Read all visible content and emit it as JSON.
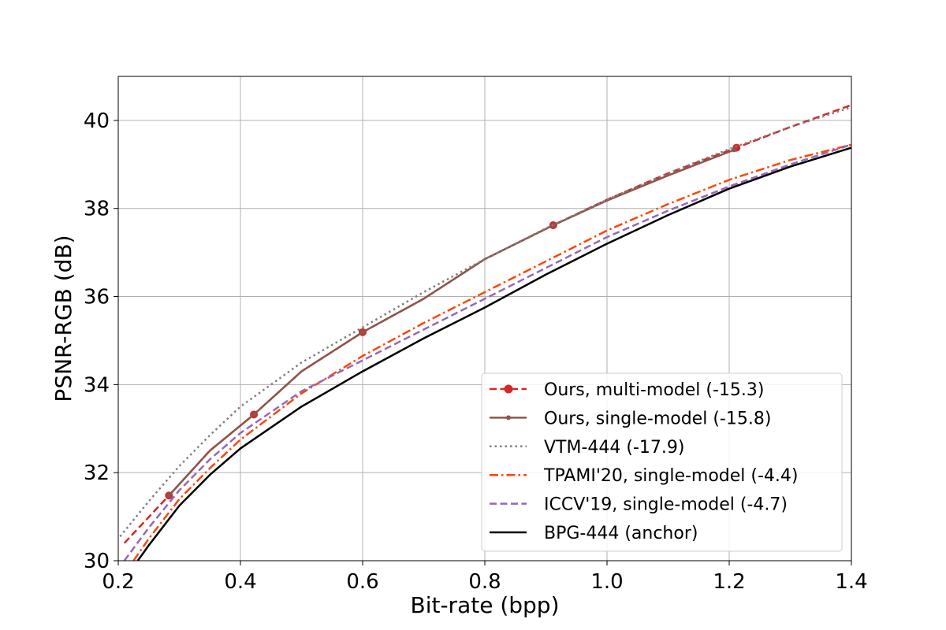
{
  "chart_data": {
    "type": "line",
    "title": "",
    "xlabel": "Bit-rate (bpp)",
    "ylabel": "PSNR-RGB (dB)",
    "xlim": [
      0.2,
      1.4
    ],
    "ylim": [
      30,
      41
    ],
    "x_ticks": [
      0.2,
      0.4,
      0.6,
      0.8,
      1.0,
      1.2,
      1.4
    ],
    "x_tick_labels": [
      "0.2",
      "0.4",
      "0.6",
      "0.8",
      "1.0",
      "1.2",
      "1.4"
    ],
    "y_ticks": [
      30,
      32,
      34,
      36,
      38,
      40
    ],
    "y_tick_labels": [
      "30",
      "32",
      "34",
      "36",
      "38",
      "40"
    ],
    "grid": true,
    "legend_position": "lower-right",
    "series": [
      {
        "name": "Ours, multi-model (-15.3)",
        "color": "#d62728",
        "style": "dashed",
        "marker": "circle-large",
        "x": [
          0.21,
          0.283,
          0.35,
          0.422,
          0.5,
          0.6,
          0.7,
          0.8,
          0.912,
          1.0,
          1.1,
          1.212,
          1.3,
          1.4
        ],
        "y": [
          30.4,
          31.48,
          32.5,
          33.32,
          34.3,
          35.19,
          35.95,
          36.85,
          37.62,
          38.2,
          38.8,
          39.38,
          39.85,
          40.35
        ],
        "marker_indices": [
          1,
          3,
          5,
          8,
          11
        ]
      },
      {
        "name": "Ours, single-model (-15.8)",
        "color": "#8c564b",
        "style": "solid",
        "marker": "circle-small",
        "x": [
          0.283,
          0.35,
          0.422,
          0.5,
          0.6,
          0.7,
          0.8,
          0.912,
          1.0,
          1.1,
          1.208
        ],
        "y": [
          31.48,
          32.5,
          33.32,
          34.3,
          35.19,
          35.95,
          36.85,
          37.62,
          38.18,
          38.75,
          39.33
        ],
        "marker_indices": [
          0,
          2,
          4,
          7,
          10
        ]
      },
      {
        "name": "VTM-444 (-17.9)",
        "color": "#7f7f7f",
        "style": "dotted",
        "marker": "none",
        "x": [
          0.203,
          0.25,
          0.3,
          0.35,
          0.4,
          0.5,
          0.6,
          0.7,
          0.8,
          0.9,
          1.0,
          1.1,
          1.2,
          1.3,
          1.4
        ],
        "y": [
          30.55,
          31.35,
          32.15,
          32.85,
          33.5,
          34.5,
          35.3,
          36.1,
          36.85,
          37.55,
          38.2,
          38.8,
          39.35,
          39.85,
          40.3
        ],
        "marker_indices": []
      },
      {
        "name": "TPAMI'20, single-model (-4.4)",
        "color": "#ff4500",
        "style": "dashdot",
        "marker": "none",
        "x": [
          0.225,
          0.25,
          0.3,
          0.35,
          0.4,
          0.5,
          0.6,
          0.7,
          0.8,
          0.9,
          1.0,
          1.1,
          1.2,
          1.3,
          1.4
        ],
        "y": [
          30.0,
          30.5,
          31.4,
          32.1,
          32.75,
          33.8,
          34.65,
          35.4,
          36.1,
          36.8,
          37.5,
          38.1,
          38.65,
          39.1,
          39.45
        ],
        "marker_indices": []
      },
      {
        "name": "ICCV'19, single-model (-4.7)",
        "color": "#9467bd",
        "style": "dashed",
        "marker": "none",
        "x": [
          0.21,
          0.25,
          0.3,
          0.35,
          0.4,
          0.5,
          0.6,
          0.7,
          0.8,
          0.9,
          1.0,
          1.1,
          1.2,
          1.3,
          1.4
        ],
        "y": [
          30.0,
          30.75,
          31.6,
          32.3,
          32.9,
          33.85,
          34.55,
          35.25,
          35.95,
          36.65,
          37.35,
          37.95,
          38.5,
          39.0,
          39.45
        ],
        "marker_indices": []
      },
      {
        "name": "BPG-444 (anchor)",
        "color": "#000000",
        "style": "solid",
        "marker": "none",
        "x": [
          0.232,
          0.25,
          0.3,
          0.35,
          0.4,
          0.5,
          0.6,
          0.7,
          0.8,
          0.9,
          1.0,
          1.1,
          1.2,
          1.3,
          1.4
        ],
        "y": [
          30.0,
          30.35,
          31.25,
          31.95,
          32.55,
          33.5,
          34.3,
          35.05,
          35.75,
          36.5,
          37.2,
          37.85,
          38.45,
          38.95,
          39.38
        ],
        "marker_indices": []
      }
    ]
  }
}
